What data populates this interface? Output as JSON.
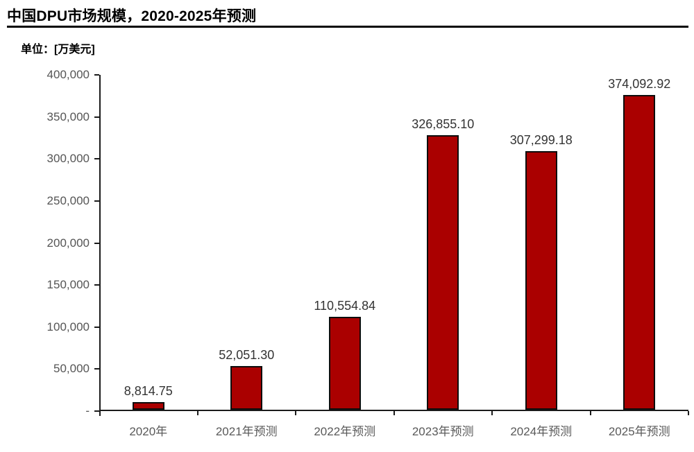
{
  "header": {
    "title": "中国DPU市场规模，2020-2025年预测",
    "unit_label": "单位：[万美元]"
  },
  "colors": {
    "bar_fill": "#aa0000",
    "bar_border": "#0d0d0d",
    "axis_line": "#1a1a1a",
    "data_label": "#333333",
    "axis_label": "#595959",
    "title": "#000000"
  },
  "chart_data": {
    "type": "bar",
    "title": "中国DPU市场规模，2020-2025年预测",
    "unit": "万美元",
    "categories": [
      "2020年",
      "2021年预测",
      "2022年预测",
      "2023年预测",
      "2024年预测",
      "2025年预测"
    ],
    "values": [
      8814.75,
      52051.3,
      110554.84,
      326855.1,
      307299.18,
      374092.92
    ],
    "data_labels": [
      "8,814.75",
      "52,051.30",
      "110,554.84",
      "326,855.10",
      "307,299.18",
      "374,092.92"
    ],
    "xlabel": "",
    "ylabel": "",
    "ylim": [
      0,
      400000
    ],
    "ytick_step": 50000,
    "ytick_labels": [
      "-",
      "50,000",
      "100,000",
      "150,000",
      "200,000",
      "250,000",
      "300,000",
      "350,000",
      "400,000"
    ],
    "grid": false,
    "legend": null
  }
}
